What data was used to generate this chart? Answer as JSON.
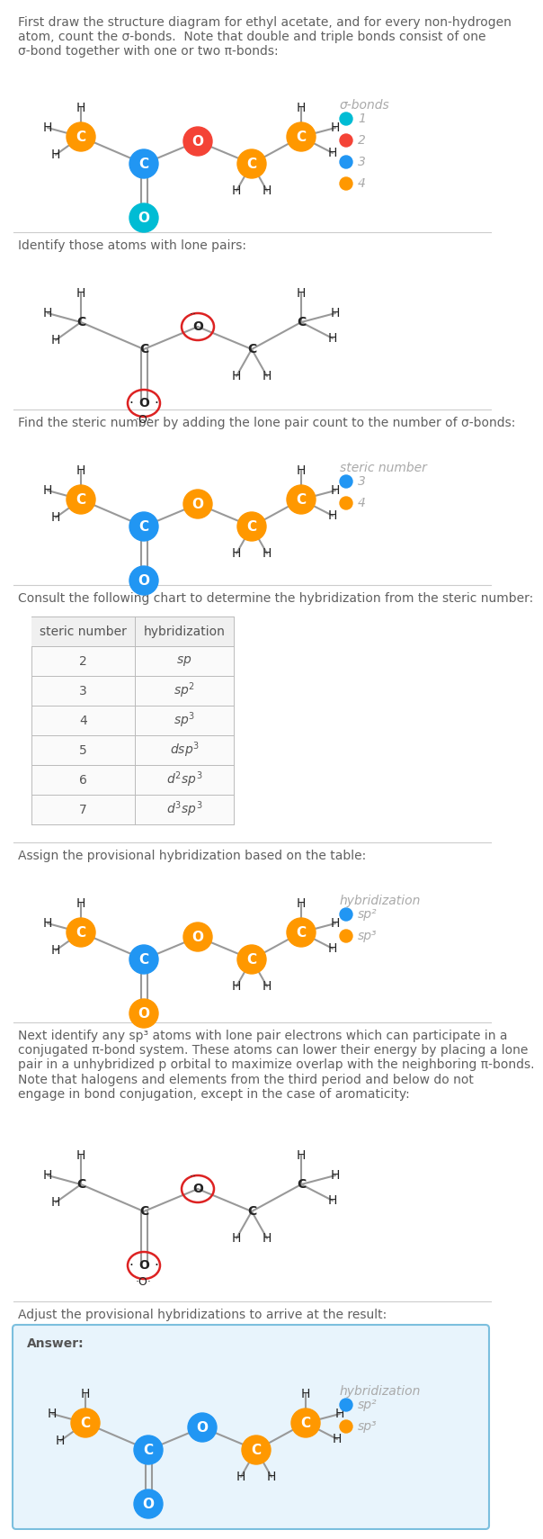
{
  "title_texts": [
    "First draw the structure diagram for ethyl acetate, and for every non-hydrogen\natom, count the σ-bonds.  Note that double and triple bonds consist of one\nσ-bond together with one or two π-bonds:",
    "Identify those atoms with lone pairs:",
    "Find the steric number by adding the lone pair count to the number of σ-bonds:",
    "Consult the following chart to determine the hybridization from the steric number:",
    "Assign the provisional hybridization based on the table:",
    "Next identify any sp³ atoms with lone pair electrons which can participate in a\nconjugated π-bond system. These atoms can lower their energy by placing a lone\npair in a unhybridized p orbital to maximize overlap with the neighboring π-bonds.\nNote that halogens and elements from the third period and below do not\nengage in bond conjugation, except in the case of aromaticity:",
    "Adjust the provisional hybridizations to arrive at the result:"
  ],
  "sigma_bond_legend": {
    "title": "σ-bonds",
    "items": [
      {
        "label": "1",
        "color": "#00bcd4"
      },
      {
        "label": "2",
        "color": "#f44336"
      },
      {
        "label": "3",
        "color": "#2196f3"
      },
      {
        "label": "4",
        "color": "#ff9800"
      }
    ]
  },
  "steric_number_legend": {
    "title": "steric number",
    "items": [
      {
        "label": "3",
        "color": "#2196f3"
      },
      {
        "label": "4",
        "color": "#ff9800"
      }
    ]
  },
  "hybridization_legend": {
    "title": "hybridization",
    "items": [
      {
        "label": "sp²",
        "color": "#2196f3"
      },
      {
        "label": "sp³",
        "color": "#ff9800"
      }
    ]
  },
  "answer_hybridization_legend": {
    "title": "hybridization",
    "items": [
      {
        "label": "sp²",
        "color": "#2196f3"
      },
      {
        "label": "sp³",
        "color": "#ff9800"
      }
    ]
  },
  "table_data": {
    "headers": [
      "steric number",
      "hybridization"
    ],
    "rows": [
      [
        "2",
        "sp"
      ],
      [
        "3",
        "sp²"
      ],
      [
        "4",
        "sp³"
      ],
      [
        "5",
        "dsp³"
      ],
      [
        "6",
        "d²sp³"
      ],
      [
        "7",
        "d³sp³"
      ]
    ]
  },
  "answer_text": "Answer:",
  "bg_color": "#ffffff",
  "text_color": "#606060",
  "separator_color": "#cccccc",
  "C_orange": "#ff9800",
  "C_blue": "#2196f3",
  "C_red": "#f44336",
  "C_cyan": "#00bcd4",
  "C_black": "#222222",
  "answer_bg": "#e8f4fc",
  "answer_border": "#7bbfde"
}
